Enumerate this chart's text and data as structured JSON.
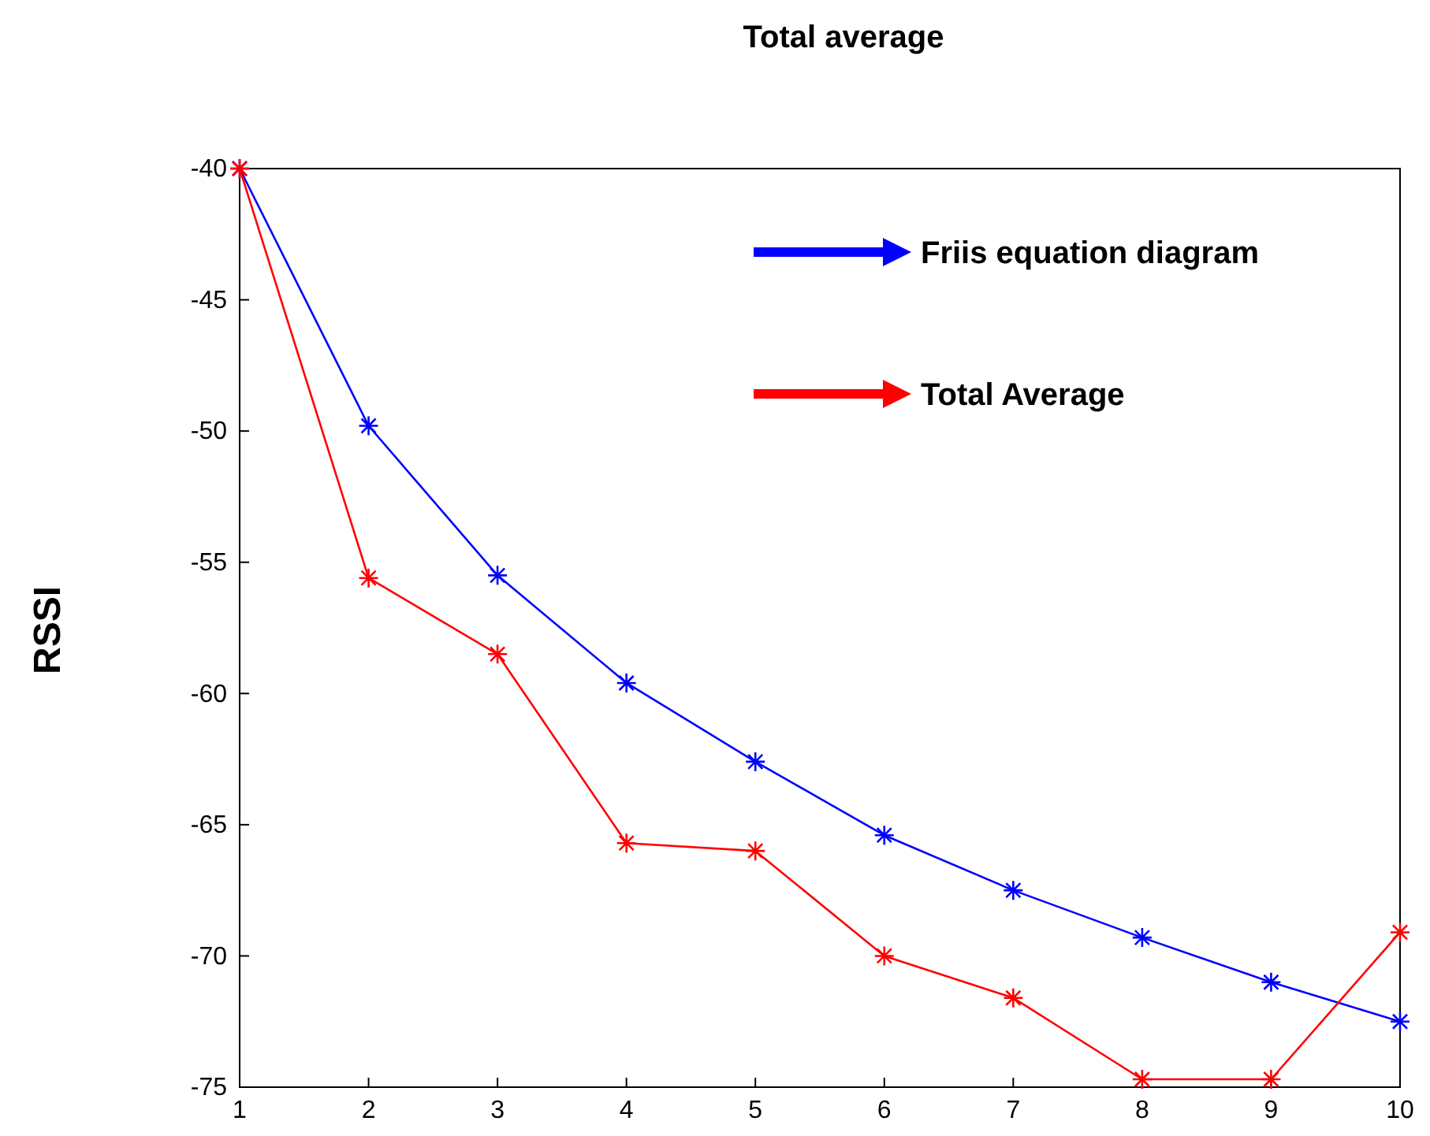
{
  "chart_data": {
    "type": "line",
    "title": "Total average",
    "ylabel": "RSSI",
    "x": [
      1,
      2,
      3,
      4,
      5,
      6,
      7,
      8,
      9,
      10
    ],
    "series": [
      {
        "name": "Friis equation diagram",
        "color": "#0000ff",
        "values": [
          -40,
          -49.8,
          -55.5,
          -59.6,
          -62.6,
          -65.4,
          -67.5,
          -69.3,
          -71,
          -72.5
        ]
      },
      {
        "name": "Total Average",
        "color": "#ff0000",
        "values": [
          -40,
          -55.6,
          -58.5,
          -65.7,
          -66,
          -70,
          -71.6,
          -74.7,
          -74.7,
          -69.1
        ]
      }
    ],
    "xlim": [
      1,
      10
    ],
    "xticks": [
      1,
      2,
      3,
      4,
      5,
      6,
      7,
      8,
      9,
      10
    ],
    "ylim": [
      -75,
      -40
    ],
    "yticks": [
      -75,
      -70,
      -65,
      -60,
      -55,
      -50,
      -45,
      -40
    ],
    "grid": false,
    "legend": "top right",
    "marker": "cross",
    "line_style": "solid"
  }
}
